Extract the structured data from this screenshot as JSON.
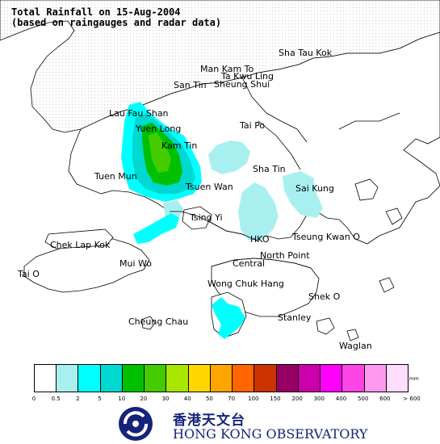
{
  "title": {
    "line1": "Total Rainfall on 15-Aug-2004",
    "line2": "(based on raingauges and radar data)"
  },
  "places": [
    {
      "id": "sha-tau-kok",
      "label": "Sha Tau Kok"
    },
    {
      "id": "man-kam-to",
      "label": "Man Kam To"
    },
    {
      "id": "ta-kwu-ling",
      "label": "Ta Kwu Ling"
    },
    {
      "id": "san-tin",
      "label": "San Tin"
    },
    {
      "id": "sheung-shui",
      "label": "Sheung Shui"
    },
    {
      "id": "lau-fau-shan",
      "label": "Lau Fau Shan"
    },
    {
      "id": "yuen-long",
      "label": "Yuen Long"
    },
    {
      "id": "kam-tin",
      "label": "Kam Tin"
    },
    {
      "id": "tai-po",
      "label": "Tai Po"
    },
    {
      "id": "tuen-mun",
      "label": "Tuen Mun"
    },
    {
      "id": "sha-tin",
      "label": "Sha Tin"
    },
    {
      "id": "tsuen-wan",
      "label": "Tsuen Wan"
    },
    {
      "id": "sai-kung",
      "label": "Sai Kung"
    },
    {
      "id": "tsing-yi",
      "label": "Tsing Yi"
    },
    {
      "id": "chek-lap-kok",
      "label": "Chek Lap Kok"
    },
    {
      "id": "hko",
      "label": "HKO"
    },
    {
      "id": "tseung-kwan-o",
      "label": "Tseung Kwan O"
    },
    {
      "id": "north-point",
      "label": "North Point"
    },
    {
      "id": "mui-wo",
      "label": "Mui Wo"
    },
    {
      "id": "central",
      "label": "Central"
    },
    {
      "id": "tai-o",
      "label": "Tai O"
    },
    {
      "id": "wong-chuk-hang",
      "label": "Wong Chuk Hang"
    },
    {
      "id": "shek-o",
      "label": "Shek O"
    },
    {
      "id": "stanley",
      "label": "Stanley"
    },
    {
      "id": "cheung-chau",
      "label": "Cheung Chau"
    },
    {
      "id": "waglan",
      "label": "Waglan"
    }
  ],
  "legend": {
    "unit": "mm",
    "colors": [
      "#ffffff",
      "#a8f0f0",
      "#00ffff",
      "#00d8d0",
      "#00c000",
      "#44cc00",
      "#a6e600",
      "#ffd700",
      "#ffa500",
      "#ff6600",
      "#cc3300",
      "#990066",
      "#cc00aa",
      "#ff00ff",
      "#ff44e6",
      "#ff99f0",
      "#ffddff"
    ],
    "ticks": [
      "0",
      "0.5",
      "2",
      "5",
      "10",
      "20",
      "30",
      "40",
      "50",
      "70",
      "100",
      "150",
      "200",
      "300",
      "400",
      "500",
      "600",
      "> 600"
    ]
  },
  "organization": {
    "name_cn": "香港天文台",
    "name_en": "HONG KONG OBSERVATORY"
  }
}
